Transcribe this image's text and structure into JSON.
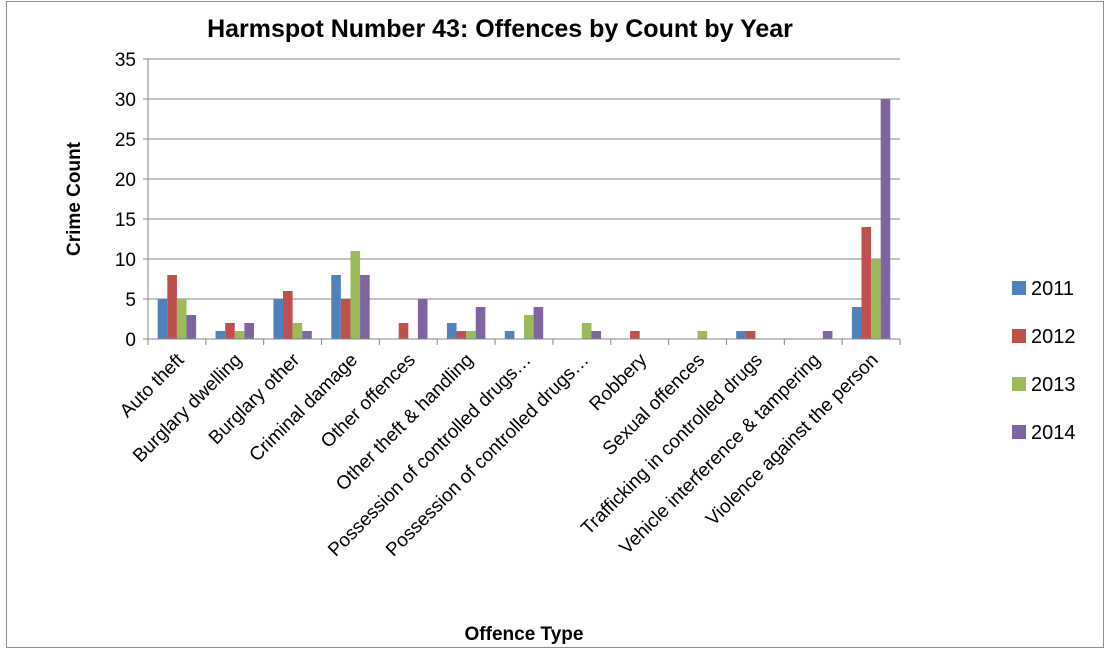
{
  "chart_data": {
    "type": "bar",
    "title": "Harmspot Number 43: Offences by Count by Year",
    "xlabel": "Offence Type",
    "ylabel": "Crime Count",
    "ylim": [
      0,
      35
    ],
    "yticks": [
      "0",
      "5",
      "10",
      "15",
      "20",
      "25",
      "30",
      "35"
    ],
    "grid": true,
    "legend_position": "right",
    "categories": [
      "Auto theft",
      "Burglary dwelling",
      "Burglary other",
      "Criminal damage",
      "Other offences",
      "Other theft & handling",
      "Possession of controlled drugs…",
      "Possession of controlled drugs…",
      "Robbery",
      "Sexual offences",
      "Trafficking in controlled drugs",
      "Vehicle interference & tampering",
      "Violence against the person"
    ],
    "series": [
      {
        "name": "2011",
        "color": "#4f81bd",
        "values": [
          5,
          1,
          5,
          8,
          0,
          2,
          1,
          0,
          0,
          0,
          1,
          0,
          4
        ]
      },
      {
        "name": "2012",
        "color": "#c0504d",
        "values": [
          8,
          2,
          6,
          5,
          2,
          1,
          0,
          0,
          1,
          0,
          1,
          0,
          14
        ]
      },
      {
        "name": "2013",
        "color": "#9bbb59",
        "values": [
          5,
          1,
          2,
          11,
          0,
          1,
          3,
          2,
          0,
          1,
          0,
          0,
          10
        ]
      },
      {
        "name": "2014",
        "color": "#8064a2",
        "values": [
          3,
          2,
          1,
          8,
          5,
          4,
          4,
          1,
          0,
          0,
          0,
          1,
          30
        ]
      }
    ]
  }
}
